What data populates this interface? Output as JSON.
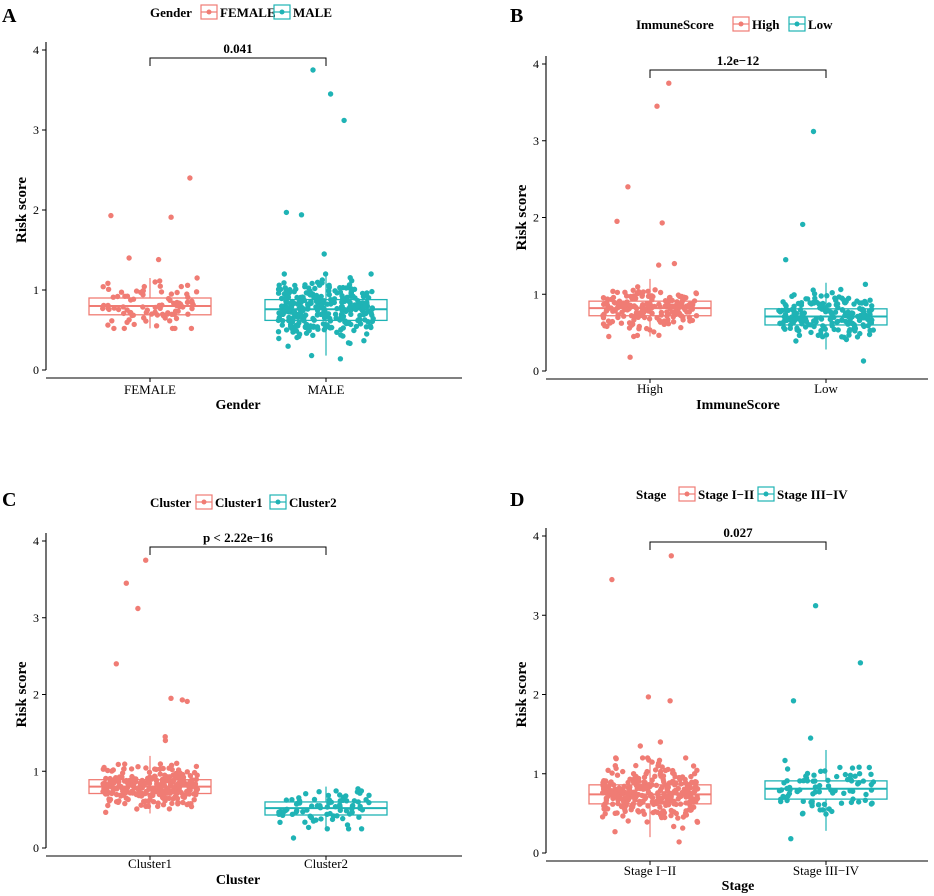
{
  "chart_data": [
    {
      "type": "box",
      "panel_label": "A",
      "legend": {
        "title": "Gender",
        "entries": [
          "FEMALE",
          "MALE"
        ],
        "position": "top"
      },
      "categories": [
        "FEMALE",
        "MALE"
      ],
      "xlabel": "Gender",
      "ylabel": "Risk score",
      "ylim": [
        0,
        4
      ],
      "yticks": [
        0,
        1,
        2,
        3,
        4
      ],
      "comparison": "0.041",
      "boxes": [
        {
          "q1": 0.69,
          "median": 0.8,
          "q3": 0.9,
          "whisker_low": 0.52,
          "whisker_high": 1.15,
          "n_points": 90,
          "outliers": [
            2.4,
            1.93,
            1.91,
            1.4,
            1.38
          ]
        },
        {
          "q1": 0.62,
          "median": 0.76,
          "q3": 0.88,
          "whisker_low": 0.18,
          "whisker_high": 1.2,
          "n_points": 300,
          "outliers": [
            3.75,
            3.45,
            3.12,
            1.97,
            1.94,
            1.45,
            0.14
          ]
        }
      ]
    },
    {
      "type": "box",
      "panel_label": "B",
      "legend": {
        "title": "ImmuneScore",
        "entries": [
          "High",
          "Low"
        ],
        "position": "top"
      },
      "categories": [
        "High",
        "Low"
      ],
      "xlabel": "ImmuneScore",
      "ylabel": "Risk score",
      "ylim": [
        0,
        4
      ],
      "yticks": [
        0,
        1,
        2,
        3,
        4
      ],
      "comparison": "1.2e−12",
      "boxes": [
        {
          "q1": 0.72,
          "median": 0.82,
          "q3": 0.91,
          "whisker_low": 0.45,
          "whisker_high": 1.2,
          "n_points": 200,
          "outliers": [
            3.75,
            3.45,
            2.4,
            1.95,
            1.93,
            1.4,
            1.38,
            0.18
          ]
        },
        {
          "q1": 0.6,
          "median": 0.71,
          "q3": 0.81,
          "whisker_low": 0.28,
          "whisker_high": 1.15,
          "n_points": 190,
          "outliers": [
            3.12,
            1.91,
            1.45,
            0.13
          ]
        }
      ]
    },
    {
      "type": "box",
      "panel_label": "C",
      "legend": {
        "title": "Cluster",
        "entries": [
          "Cluster1",
          "Cluster2"
        ],
        "position": "top"
      },
      "categories": [
        "Cluster1",
        "Cluster2"
      ],
      "xlabel": "Cluster",
      "ylabel": "Risk score",
      "ylim": [
        0,
        4
      ],
      "yticks": [
        0,
        1,
        2,
        3,
        4
      ],
      "comparison": "p < 2.22e−16",
      "boxes": [
        {
          "q1": 0.71,
          "median": 0.8,
          "q3": 0.89,
          "whisker_low": 0.45,
          "whisker_high": 1.2,
          "n_points": 290,
          "outliers": [
            3.75,
            3.45,
            3.12,
            2.4,
            1.95,
            1.93,
            1.91,
            1.45,
            1.4
          ]
        },
        {
          "q1": 0.43,
          "median": 0.52,
          "q3": 0.6,
          "whisker_low": 0.25,
          "whisker_high": 0.8,
          "n_points": 80,
          "outliers": [
            0.13
          ]
        }
      ]
    },
    {
      "type": "box",
      "panel_label": "D",
      "legend": {
        "title": "Stage",
        "entries": [
          "Stage I−II",
          "Stage III−IV"
        ],
        "position": "top"
      },
      "categories": [
        "Stage I−II",
        "Stage III−IV"
      ],
      "xlabel": "Stage",
      "ylabel": "Risk score",
      "ylim": [
        0,
        4
      ],
      "yticks": [
        0,
        1,
        2,
        3,
        4
      ],
      "comparison": "0.027",
      "boxes": [
        {
          "q1": 0.62,
          "median": 0.74,
          "q3": 0.86,
          "whisker_low": 0.2,
          "whisker_high": 1.2,
          "n_points": 300,
          "outliers": [
            3.75,
            3.45,
            1.97,
            1.92,
            1.4,
            1.35,
            0.14
          ]
        },
        {
          "q1": 0.68,
          "median": 0.81,
          "q3": 0.91,
          "whisker_low": 0.28,
          "whisker_high": 1.3,
          "n_points": 85,
          "outliers": [
            3.12,
            2.4,
            1.92,
            1.45,
            0.18
          ]
        }
      ]
    }
  ],
  "colors": {
    "group1": "#F07C74",
    "group2": "#1FB3B5",
    "axis": "#000000"
  }
}
